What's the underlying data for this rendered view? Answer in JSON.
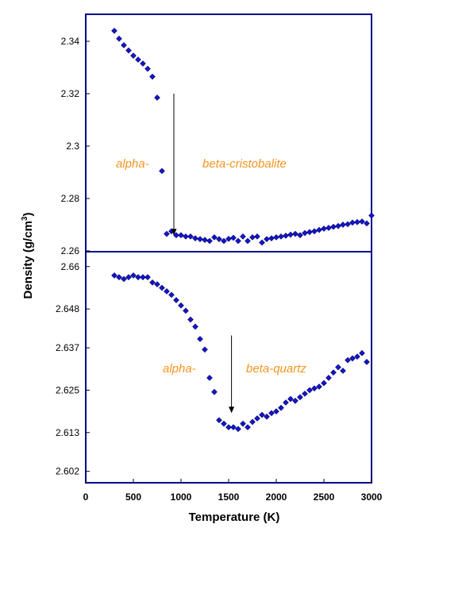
{
  "chart_data": [
    {
      "type": "scatter",
      "title": "",
      "xlabel": "Temperature (K)",
      "ylabel": "Density (g/cm3)",
      "xlim": [
        0,
        3000
      ],
      "ylim": [
        2.26,
        2.35
      ],
      "yticks": [
        "2.26",
        "2.28",
        "2.3",
        "2.32",
        "2.34"
      ],
      "yticks_values": [
        2.26,
        2.28,
        2.3,
        2.32,
        2.34
      ],
      "annotations": {
        "left": "alpha-",
        "right": "beta-cristobalite"
      },
      "arrow": {
        "x": 925,
        "y_from": 2.32,
        "y_to": 2.266
      },
      "marker_color": "#1515C8",
      "series": [
        {
          "x": [
            300,
            350,
            400,
            450,
            500,
            550,
            600,
            650,
            700,
            750,
            800,
            850,
            900,
            950,
            1000,
            1050,
            1100,
            1150,
            1200,
            1250,
            1300,
            1350,
            1400,
            1450,
            1500,
            1550,
            1600,
            1650,
            1700,
            1750,
            1800,
            1850,
            1900,
            1950,
            2000,
            2050,
            2100,
            2150,
            2200,
            2250,
            2300,
            2350,
            2400,
            2450,
            2500,
            2550,
            2600,
            2650,
            2700,
            2750,
            2800,
            2850,
            2900,
            2950,
            3000
          ],
          "y": [
            2.344,
            2.341,
            2.3385,
            2.3365,
            2.3345,
            2.333,
            2.3315,
            2.3295,
            2.3265,
            2.3185,
            2.2905,
            2.2665,
            2.2675,
            2.266,
            2.266,
            2.2655,
            2.2655,
            2.2648,
            2.2645,
            2.2642,
            2.2638,
            2.2652,
            2.2645,
            2.2638,
            2.2646,
            2.265,
            2.2638,
            2.2655,
            2.2638,
            2.2652,
            2.2655,
            2.2632,
            2.2645,
            2.2648,
            2.2652,
            2.2655,
            2.2658,
            2.2662,
            2.2665,
            2.266,
            2.2668,
            2.2672,
            2.2675,
            2.268,
            2.2685,
            2.2688,
            2.2692,
            2.2695,
            2.27,
            2.2702,
            2.2708,
            2.271,
            2.2712,
            2.2705,
            2.2735
          ]
        }
      ]
    },
    {
      "type": "scatter",
      "title": "",
      "xlabel": "Temperature (K)",
      "ylabel": "Density (g/cm3)",
      "xlim": [
        0,
        3000
      ],
      "ylim": [
        2.599,
        2.664
      ],
      "xticks": [
        "0",
        "500",
        "1000",
        "1500",
        "2000",
        "2500",
        "3000"
      ],
      "xticks_values": [
        0,
        500,
        1000,
        1500,
        2000,
        2500,
        3000
      ],
      "yticks": [
        "2.602",
        "2.613",
        "2.625",
        "2.637",
        "2.648",
        "2.66"
      ],
      "yticks_values": [
        2.602,
        2.613,
        2.625,
        2.637,
        2.648,
        2.66
      ],
      "annotations": {
        "left": "alpha-",
        "right": "beta-quartz"
      },
      "arrow": {
        "x": 1530,
        "y_from": 2.6405,
        "y_to": 2.6185
      },
      "marker_color": "#1515C8",
      "series": [
        {
          "x": [
            300,
            350,
            400,
            450,
            500,
            550,
            600,
            650,
            700,
            750,
            800,
            850,
            900,
            950,
            1000,
            1050,
            1100,
            1150,
            1200,
            1250,
            1300,
            1350,
            1400,
            1450,
            1500,
            1550,
            1600,
            1650,
            1700,
            1750,
            1800,
            1850,
            1900,
            1950,
            2000,
            2050,
            2100,
            2150,
            2200,
            2250,
            2300,
            2350,
            2400,
            2450,
            2500,
            2550,
            2600,
            2650,
            2700,
            2750,
            2800,
            2850,
            2900,
            2950
          ],
          "y": [
            2.6575,
            2.657,
            2.6565,
            2.657,
            2.6575,
            2.657,
            2.657,
            2.657,
            2.6555,
            2.655,
            2.654,
            2.653,
            2.652,
            2.6505,
            2.649,
            2.6475,
            2.645,
            2.643,
            2.6395,
            2.6365,
            2.6285,
            2.6245,
            2.6165,
            2.6155,
            2.6145,
            2.6145,
            2.614,
            2.6155,
            2.6145,
            2.616,
            2.617,
            2.618,
            2.6175,
            2.6185,
            2.619,
            2.62,
            2.6215,
            2.6225,
            2.622,
            2.623,
            2.624,
            2.625,
            2.6255,
            2.626,
            2.627,
            2.6285,
            2.63,
            2.6315,
            2.6305,
            2.6335,
            2.634,
            2.6345,
            2.6355,
            2.633
          ]
        }
      ]
    }
  ]
}
